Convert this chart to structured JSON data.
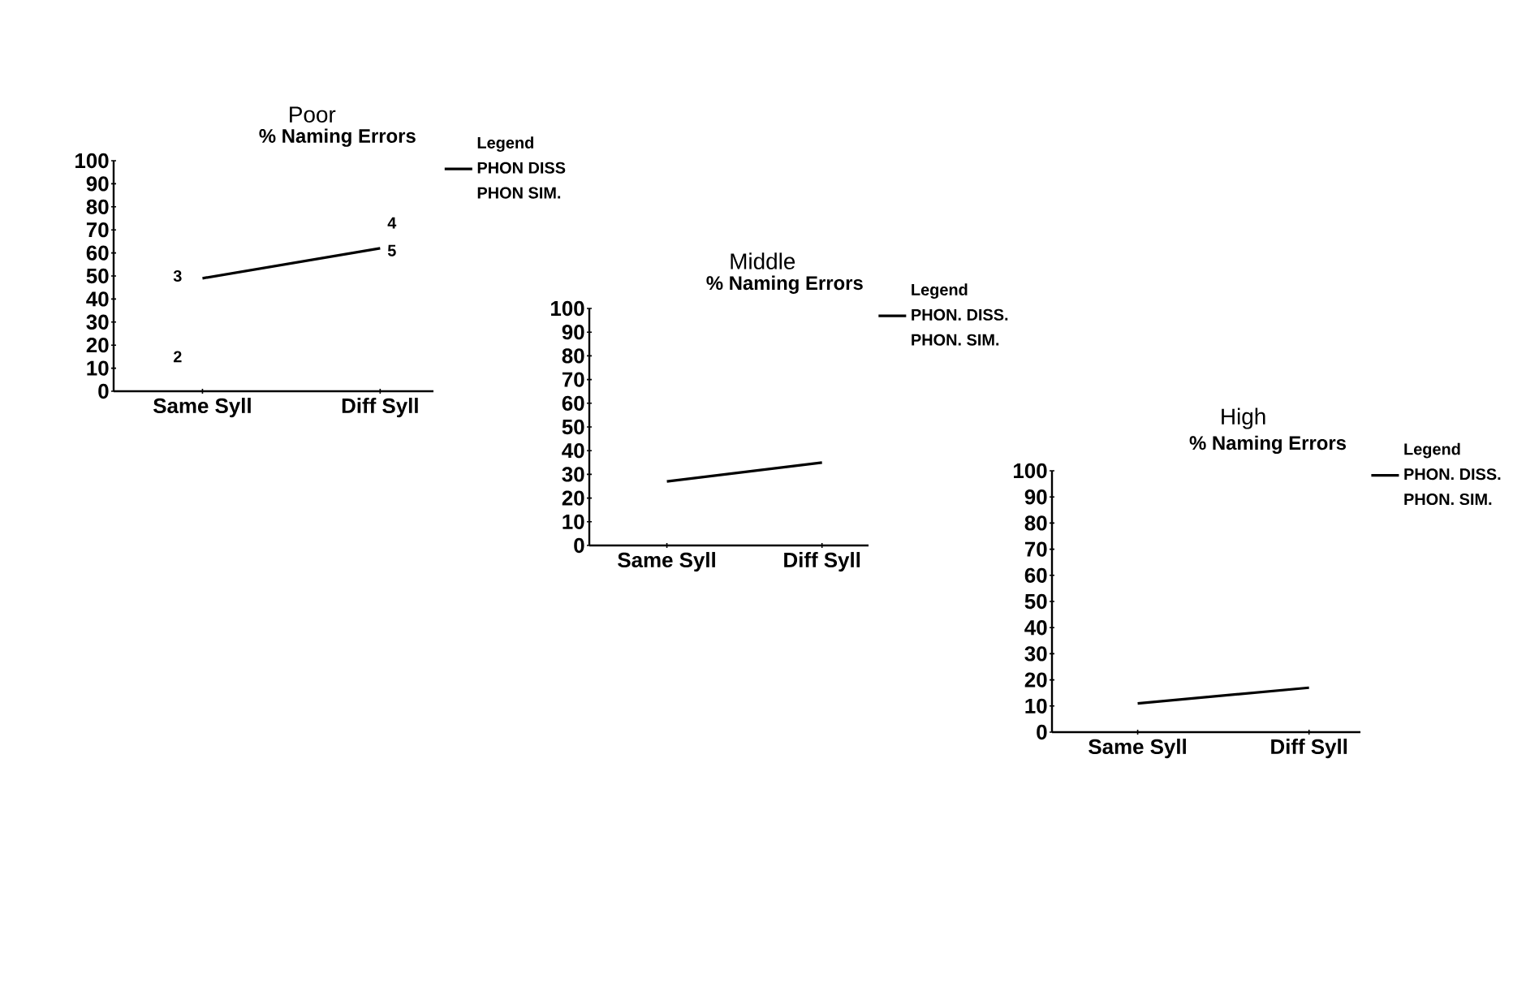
{
  "chart_data": [
    {
      "type": "line",
      "title": "Poor",
      "subtitle": "% Naming Errors",
      "categories": [
        "Same Syll",
        "Diff  Syll"
      ],
      "ylim": [
        0,
        100
      ],
      "yticks": [
        0,
        10,
        20,
        30,
        40,
        50,
        60,
        70,
        80,
        90,
        100
      ],
      "legend": "right",
      "legend_title": "Legend",
      "series": [
        {
          "name": "PHON DISS",
          "color": "#000000",
          "values": [
            49,
            62
          ]
        },
        {
          "name": "PHON SIM.",
          "color": "#000000",
          "values": [
            null,
            null
          ]
        }
      ],
      "annotations": [
        "3",
        "2",
        "4",
        "5"
      ]
    },
    {
      "type": "line",
      "title": "Middle",
      "subtitle": "% Naming Errors",
      "categories": [
        "Same Syll",
        "Diff  Syll"
      ],
      "ylim": [
        0,
        100
      ],
      "yticks": [
        0,
        10,
        20,
        30,
        40,
        50,
        60,
        70,
        80,
        90,
        100
      ],
      "legend": "right",
      "legend_title": "Legend",
      "series": [
        {
          "name": "PHON. DISS.",
          "color": "#000000",
          "values": [
            27,
            35
          ]
        },
        {
          "name": "PHON. SIM.",
          "color": "#000000",
          "values": [
            null,
            null
          ]
        }
      ]
    },
    {
      "type": "line",
      "title": "High",
      "subtitle": "% Naming Errors",
      "categories": [
        "Same Syll",
        "Diff  Syll"
      ],
      "ylim": [
        0,
        100
      ],
      "yticks": [
        0,
        10,
        20,
        30,
        40,
        50,
        60,
        70,
        80,
        90,
        100
      ],
      "legend": "right",
      "legend_title": "Legend",
      "series": [
        {
          "name": "PHON. DISS.",
          "color": "#000000",
          "values": [
            11,
            17
          ]
        },
        {
          "name": "PHON. SIM.",
          "color": "#000000",
          "values": [
            null,
            null
          ]
        }
      ]
    }
  ]
}
